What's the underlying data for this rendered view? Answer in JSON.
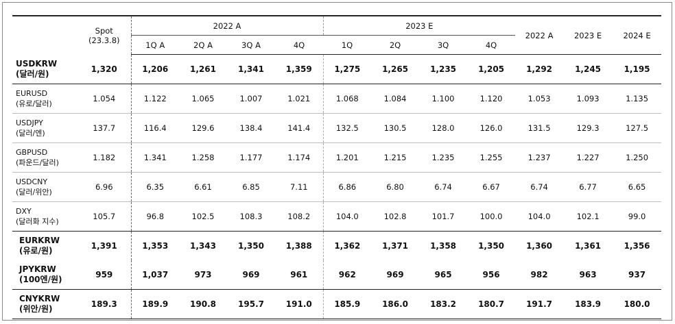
{
  "header": {
    "spot_label": "Spot",
    "spot_date": "(23.3.8)",
    "group_2022": "2022 A",
    "group_2023": "2023 E",
    "q_2022": [
      "1Q A",
      "2Q A",
      "3Q A",
      "4Q"
    ],
    "q_2023": [
      "1Q",
      "2Q",
      "3Q",
      "4Q"
    ],
    "annual": [
      "2022 A",
      "2023 E",
      "2024 E"
    ]
  },
  "rows": [
    {
      "name": "USDKRW",
      "sub": "(달러/원)",
      "values": [
        "1,320",
        "1,206",
        "1,261",
        "1,341",
        "1,359",
        "1,275",
        "1,265",
        "1,235",
        "1,205",
        "1,292",
        "1,245",
        "1,195"
      ]
    },
    {
      "name": "EURUSD",
      "sub": "(유로/달러)",
      "values": [
        "1.054",
        "1.122",
        "1.065",
        "1.007",
        "1.021",
        "1.068",
        "1.084",
        "1.100",
        "1.120",
        "1.053",
        "1.093",
        "1.135"
      ]
    },
    {
      "name": "USDJPY",
      "sub": "(달러/엔)",
      "values": [
        "137.7",
        "116.4",
        "129.6",
        "138.4",
        "141.4",
        "132.5",
        "130.5",
        "128.0",
        "126.0",
        "131.5",
        "129.3",
        "127.5"
      ]
    },
    {
      "name": "GBPUSD",
      "sub": "(파운드/달러)",
      "values": [
        "1.182",
        "1.341",
        "1.258",
        "1.177",
        "1.174",
        "1.201",
        "1.215",
        "1.235",
        "1.255",
        "1.237",
        "1.227",
        "1.250"
      ]
    },
    {
      "name": "USDCNY",
      "sub": "(달러/위안)",
      "values": [
        "6.96",
        "6.35",
        "6.61",
        "6.85",
        "7.11",
        "6.86",
        "6.80",
        "6.74",
        "6.67",
        "6.74",
        "6.77",
        "6.65"
      ]
    },
    {
      "name": "DXY",
      "sub": "(달러화 지수)",
      "values": [
        "105.7",
        "96.8",
        "102.5",
        "108.3",
        "108.2",
        "104.0",
        "102.8",
        "101.7",
        "100.0",
        "104.0",
        "102.1",
        "99.0"
      ]
    },
    {
      "name": "EURKRW",
      "sub": "(유로/원)",
      "values": [
        "1,391",
        "1,353",
        "1,343",
        "1,350",
        "1,388",
        "1,362",
        "1,371",
        "1,358",
        "1,350",
        "1,360",
        "1,361",
        "1,356"
      ]
    },
    {
      "name": "JPYKRW",
      "sub": "(100엔/원)",
      "values": [
        "959",
        "1,037",
        "973",
        "969",
        "961",
        "962",
        "969",
        "965",
        "956",
        "982",
        "963",
        "937"
      ]
    },
    {
      "name": "CNYKRW",
      "sub": "(위안/원)",
      "values": [
        "189.3",
        "189.9",
        "190.8",
        "195.7",
        "191.0",
        "185.9",
        "186.0",
        "183.2",
        "180.7",
        "191.7",
        "183.9",
        "180.0"
      ]
    }
  ]
}
